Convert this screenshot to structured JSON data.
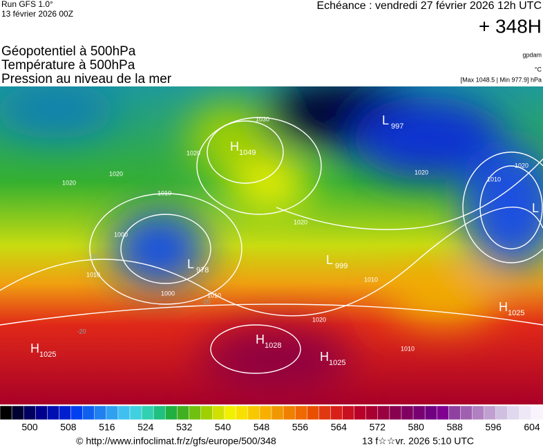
{
  "header": {
    "run": "Run GFS 1.0°",
    "run_date": "13 février 2026 00Z",
    "valid": "Echéance : vendredi 27 février 2026 12h UTC",
    "lead": "+ 348H",
    "titles": [
      "Géopotentiel à 500hPa",
      "Température à 500hPa",
      "Pression au niveau de la mer"
    ],
    "notes": [
      "gpdam",
      "°C",
      "[Max 1048.5 | Min 977.9] hPa"
    ]
  },
  "pressure_centers": [
    {
      "letter": "H",
      "value": "1049"
    },
    {
      "letter": "L",
      "value": "997"
    },
    {
      "letter": "L",
      "value": "978"
    },
    {
      "letter": "L",
      "value": "999"
    },
    {
      "letter": "H",
      "value": "1025"
    },
    {
      "letter": "H",
      "value": "1025"
    },
    {
      "letter": "H",
      "value": "1028"
    },
    {
      "letter": "H",
      "value": "1025"
    },
    {
      "letter": "L"
    }
  ],
  "isobar_labels": [
    "1030",
    "1020",
    "1020",
    "1010",
    "1000",
    "1010",
    "1000",
    "1010",
    "1020",
    "1020",
    "1020",
    "1010",
    "1010",
    "1020",
    "1020",
    "1010"
  ],
  "temperature_labels": [
    "-20",
    "-20",
    "-20"
  ],
  "colorbar": {
    "labels": [
      500,
      508,
      516,
      524,
      532,
      540,
      548,
      556,
      564,
      572,
      580,
      588,
      596,
      604
    ]
  },
  "footer": {
    "url": "© http://www.infoclimat.fr/z/gfs/europe/500/348",
    "timestamp": "13 f☆☆vr. 2026  5:10 UTC"
  }
}
